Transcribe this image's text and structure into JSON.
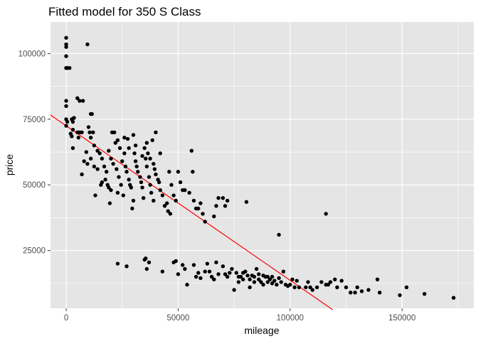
{
  "chart_data": {
    "type": "scatter",
    "title": "Fitted model for 350 S Class",
    "xlabel": "mileage",
    "ylabel": "price",
    "xlim": [
      -7000,
      182000
    ],
    "ylim": [
      3000,
      112000
    ],
    "x_ticks": [
      0,
      50000,
      100000,
      150000
    ],
    "x_tick_labels": [
      "0",
      "50000",
      "100000",
      "150000"
    ],
    "y_ticks": [
      25000,
      50000,
      75000,
      100000
    ],
    "y_tick_labels": [
      "25000",
      "50000",
      "75000",
      "100000"
    ],
    "grid": true,
    "colors": {
      "panel": "#e5e5e5",
      "grid": "#ffffff",
      "point": "#000000",
      "fit_line": "#ff0000",
      "tick": "#4d4d4d"
    },
    "fit_line": {
      "x": [
        -7000,
        119000
      ],
      "y": [
        76600,
        2500
      ]
    },
    "points": [
      [
        0,
        106000
      ],
      [
        0,
        103500
      ],
      [
        0,
        102500
      ],
      [
        0,
        99000
      ],
      [
        0,
        94500
      ],
      [
        0,
        94500
      ],
      [
        500,
        94500
      ],
      [
        1500,
        94500
      ],
      [
        9500,
        103500
      ],
      [
        0,
        82000
      ],
      [
        0,
        80000
      ],
      [
        0,
        75000
      ],
      [
        0,
        72500
      ],
      [
        500,
        74000
      ],
      [
        2500,
        75000
      ],
      [
        3000,
        74000
      ],
      [
        3500,
        75500
      ],
      [
        2000,
        69500
      ],
      [
        2500,
        68500
      ],
      [
        3000,
        71000
      ],
      [
        3000,
        64000
      ],
      [
        5000,
        70000
      ],
      [
        6000,
        70000
      ],
      [
        7000,
        70000
      ],
      [
        5500,
        68000
      ],
      [
        9000,
        62500
      ],
      [
        5000,
        83000
      ],
      [
        6000,
        82000
      ],
      [
        7500,
        82000
      ],
      [
        11000,
        77000
      ],
      [
        11500,
        77000
      ],
      [
        10000,
        72000
      ],
      [
        10500,
        70000
      ],
      [
        12000,
        70000
      ],
      [
        11000,
        68000
      ],
      [
        12500,
        65000
      ],
      [
        14000,
        63000
      ],
      [
        11000,
        60000
      ],
      [
        8000,
        59000
      ],
      [
        9500,
        58000
      ],
      [
        7000,
        54000
      ],
      [
        14000,
        56000
      ],
      [
        13000,
        46000
      ],
      [
        12500,
        57000
      ],
      [
        15000,
        62000
      ],
      [
        16000,
        60000
      ],
      [
        17000,
        57000
      ],
      [
        18000,
        55000
      ],
      [
        19000,
        63000
      ],
      [
        20000,
        60000
      ],
      [
        16000,
        51000
      ],
      [
        15500,
        50000
      ],
      [
        17500,
        52000
      ],
      [
        19000,
        49000
      ],
      [
        20000,
        48000
      ],
      [
        21000,
        58000
      ],
      [
        22000,
        66000
      ],
      [
        20500,
        70000
      ],
      [
        21500,
        70000
      ],
      [
        23000,
        67000
      ],
      [
        24000,
        64000
      ],
      [
        25000,
        59000
      ],
      [
        22500,
        56000
      ],
      [
        23500,
        53000
      ],
      [
        24500,
        50000
      ],
      [
        26000,
        62000
      ],
      [
        26500,
        57000
      ],
      [
        27000,
        55000
      ],
      [
        28000,
        52000
      ],
      [
        28500,
        50000
      ],
      [
        29000,
        49000
      ],
      [
        29500,
        41000
      ],
      [
        30000,
        44000
      ],
      [
        25500,
        46000
      ],
      [
        23000,
        47000
      ],
      [
        18500,
        50000
      ],
      [
        19500,
        43000
      ],
      [
        30500,
        62000
      ],
      [
        31000,
        59000
      ],
      [
        31500,
        57000
      ],
      [
        32000,
        55000
      ],
      [
        33000,
        53000
      ],
      [
        33500,
        51000
      ],
      [
        34000,
        49000
      ],
      [
        34500,
        45000
      ],
      [
        35000,
        64000
      ],
      [
        35500,
        60000
      ],
      [
        36000,
        57000
      ],
      [
        37000,
        53000
      ],
      [
        37500,
        50000
      ],
      [
        38000,
        47000
      ],
      [
        39000,
        44000
      ],
      [
        39500,
        56000
      ],
      [
        40000,
        54000
      ],
      [
        41000,
        52000
      ],
      [
        41500,
        51000
      ],
      [
        42000,
        48000
      ],
      [
        43000,
        46000
      ],
      [
        44000,
        42000
      ],
      [
        45000,
        43000
      ],
      [
        45500,
        40000
      ],
      [
        46000,
        55000
      ],
      [
        47000,
        50000
      ],
      [
        48000,
        46000
      ],
      [
        49000,
        44000
      ],
      [
        46500,
        39000
      ],
      [
        40000,
        70000
      ],
      [
        38500,
        67000
      ],
      [
        36500,
        62000
      ],
      [
        30000,
        69000
      ],
      [
        28000,
        64000
      ],
      [
        26000,
        68000
      ],
      [
        27500,
        67500
      ],
      [
        31000,
        65000
      ],
      [
        34000,
        61000
      ],
      [
        36000,
        66000
      ],
      [
        37500,
        60000
      ],
      [
        39000,
        58000
      ],
      [
        42000,
        62000
      ],
      [
        50000,
        55000
      ],
      [
        51000,
        51000
      ],
      [
        52000,
        48000
      ],
      [
        53000,
        48000
      ],
      [
        55000,
        47000
      ],
      [
        56000,
        63000
      ],
      [
        56500,
        55000
      ],
      [
        57000,
        44000
      ],
      [
        58000,
        41000
      ],
      [
        59000,
        41000
      ],
      [
        60000,
        43000
      ],
      [
        61000,
        39000
      ],
      [
        62000,
        36000
      ],
      [
        66000,
        38000
      ],
      [
        67000,
        42000
      ],
      [
        68000,
        45000
      ],
      [
        70000,
        45000
      ],
      [
        71000,
        42000
      ],
      [
        72000,
        44000
      ],
      [
        80500,
        43500
      ],
      [
        95000,
        31000
      ],
      [
        116000,
        39000
      ],
      [
        23000,
        20000
      ],
      [
        27000,
        19000
      ],
      [
        35000,
        21500
      ],
      [
        35500,
        22000
      ],
      [
        36000,
        18000
      ],
      [
        37000,
        20500
      ],
      [
        43000,
        17000
      ],
      [
        48000,
        20500
      ],
      [
        49000,
        21000
      ],
      [
        50000,
        16000
      ],
      [
        52000,
        19500
      ],
      [
        53000,
        18000
      ],
      [
        54000,
        12000
      ],
      [
        57000,
        19500
      ],
      [
        58000,
        15000
      ],
      [
        59000,
        16500
      ],
      [
        60000,
        14500
      ],
      [
        62000,
        17000
      ],
      [
        63000,
        20000
      ],
      [
        64000,
        17000
      ],
      [
        65000,
        15000
      ],
      [
        66000,
        14000
      ],
      [
        67000,
        20500
      ],
      [
        68000,
        16000
      ],
      [
        70000,
        19000
      ],
      [
        71000,
        16000
      ],
      [
        72000,
        15000
      ],
      [
        73000,
        16500
      ],
      [
        74000,
        18000
      ],
      [
        75000,
        10000
      ],
      [
        76000,
        16500
      ],
      [
        77000,
        15000
      ],
      [
        78000,
        15000
      ],
      [
        79000,
        14000
      ],
      [
        80000,
        17000
      ],
      [
        81000,
        15500
      ],
      [
        82000,
        11000
      ],
      [
        83000,
        15500
      ],
      [
        84000,
        15000
      ],
      [
        85000,
        18000
      ],
      [
        86000,
        14000
      ],
      [
        87000,
        13000
      ],
      [
        88000,
        12000
      ],
      [
        89000,
        15000
      ],
      [
        90000,
        13000
      ],
      [
        91000,
        14000
      ],
      [
        92000,
        12500
      ],
      [
        93000,
        13500
      ],
      [
        94000,
        12000
      ],
      [
        95000,
        14500
      ],
      [
        96000,
        13000
      ],
      [
        97000,
        17000
      ],
      [
        98000,
        12000
      ],
      [
        99000,
        11500
      ],
      [
        100000,
        12000
      ],
      [
        101000,
        14000
      ],
      [
        102000,
        11000
      ],
      [
        103000,
        13500
      ],
      [
        104000,
        11000
      ],
      [
        107000,
        11000
      ],
      [
        108000,
        13000
      ],
      [
        109000,
        11000
      ],
      [
        110000,
        10000
      ],
      [
        112000,
        11000
      ],
      [
        114000,
        13000
      ],
      [
        116000,
        12000
      ],
      [
        117000,
        12000
      ],
      [
        118000,
        13000
      ],
      [
        120000,
        14000
      ],
      [
        121000,
        11000
      ],
      [
        123000,
        13500
      ],
      [
        125000,
        11000
      ],
      [
        127000,
        9000
      ],
      [
        129000,
        9000
      ],
      [
        130000,
        11000
      ],
      [
        132000,
        9500
      ],
      [
        135000,
        10000
      ],
      [
        139000,
        14000
      ],
      [
        140000,
        9000
      ],
      [
        149000,
        8000
      ],
      [
        152000,
        11000
      ],
      [
        160000,
        8500
      ],
      [
        173000,
        7000
      ],
      [
        90000,
        15000
      ],
      [
        86000,
        16000
      ],
      [
        82000,
        14000
      ],
      [
        79000,
        16500
      ],
      [
        77000,
        13000
      ],
      [
        84000,
        13000
      ],
      [
        88000,
        15500
      ],
      [
        92000,
        15000
      ]
    ]
  }
}
